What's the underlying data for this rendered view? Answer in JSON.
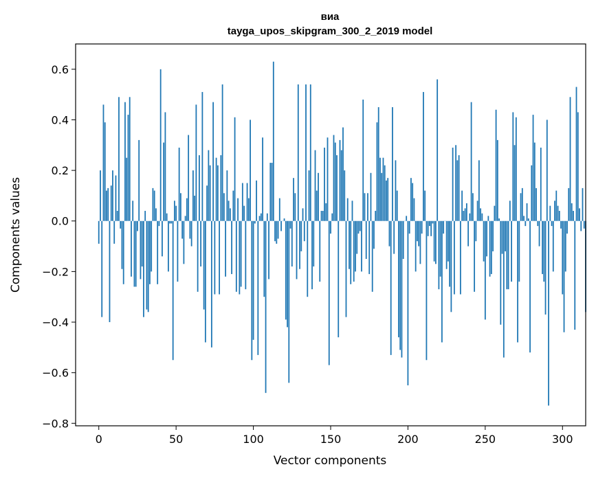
{
  "chart_data": {
    "type": "bar",
    "title": "виа",
    "subtitle": "tayga_upos_skipgram_300_2_2019 model",
    "xlabel": "Vector components",
    "ylabel": "Components values",
    "xlim": [
      -15,
      315
    ],
    "ylim": [
      -0.81,
      0.7
    ],
    "xticks": [
      0,
      50,
      100,
      150,
      200,
      250,
      300
    ],
    "yticks": [
      -0.8,
      -0.6,
      -0.4,
      -0.2,
      0.0,
      0.2,
      0.4,
      0.6
    ],
    "xtick_labels": [
      "0",
      "50",
      "100",
      "150",
      "200",
      "250",
      "300"
    ],
    "ytick_labels": [
      "−0.8",
      "−0.6",
      "−0.4",
      "−0.2",
      "0.0",
      "0.2",
      "0.4",
      "0.6"
    ],
    "bar_color": "#1f77b4",
    "values": [
      -0.09,
      0.2,
      -0.38,
      0.46,
      0.39,
      0.12,
      0.13,
      -0.4,
      0.14,
      0.2,
      -0.09,
      0.18,
      0.04,
      0.49,
      -0.03,
      -0.19,
      -0.25,
      0.47,
      0.25,
      0.42,
      0.49,
      -0.22,
      0.08,
      -0.26,
      -0.26,
      -0.04,
      0.32,
      -0.23,
      -0.18,
      -0.38,
      0.04,
      -0.35,
      -0.36,
      -0.25,
      -0.2,
      0.13,
      0.12,
      0.05,
      -0.25,
      -0.02,
      0.6,
      -0.14,
      0.31,
      0.43,
      0.03,
      -0.2,
      -0.01,
      -0.01,
      -0.55,
      0.08,
      0.06,
      -0.24,
      0.29,
      0.11,
      -0.07,
      -0.17,
      0.02,
      0.09,
      0.34,
      -0.07,
      -0.1,
      0.2,
      0.1,
      0.46,
      -0.28,
      0.26,
      -0.18,
      0.51,
      -0.35,
      -0.48,
      0.14,
      0.28,
      0.22,
      -0.5,
      0.47,
      -0.29,
      0.25,
      0.22,
      -0.29,
      0.26,
      0.54,
      0.11,
      -0.22,
      0.2,
      0.08,
      0.05,
      -0.21,
      0.12,
      0.41,
      -0.28,
      0.09,
      -0.29,
      -0.26,
      0.15,
      0.06,
      -0.27,
      0.15,
      0.09,
      0.4,
      -0.55,
      -0.47,
      -0.01,
      0.16,
      -0.53,
      0.02,
      0.03,
      0.33,
      -0.3,
      -0.68,
      0.03,
      -0.23,
      0.23,
      0.23,
      0.63,
      -0.08,
      -0.09,
      -0.07,
      0.09,
      -0.04,
      0.0,
      0.01,
      -0.39,
      -0.42,
      -0.64,
      -0.03,
      -0.18,
      0.17,
      0.11,
      -0.23,
      0.54,
      -0.19,
      -0.12,
      0.05,
      -0.08,
      0.54,
      -0.3,
      0.2,
      0.54,
      -0.27,
      -0.18,
      0.28,
      0.12,
      0.19,
      -0.24,
      0.04,
      0.04,
      0.29,
      0.07,
      0.33,
      -0.57,
      -0.05,
      0.03,
      0.34,
      0.31,
      0.26,
      -0.46,
      0.32,
      0.28,
      0.37,
      0.2,
      -0.38,
      0.09,
      -0.19,
      -0.25,
      0.08,
      -0.24,
      -0.2,
      -0.13,
      -0.05,
      -0.04,
      -0.2,
      0.48,
      0.11,
      -0.15,
      0.11,
      -0.21,
      0.19,
      -0.28,
      -0.11,
      0.04,
      0.39,
      0.45,
      0.25,
      0.19,
      0.25,
      0.22,
      0.16,
      0.17,
      -0.1,
      -0.53,
      0.45,
      -0.13,
      0.24,
      0.12,
      -0.46,
      -0.51,
      -0.54,
      -0.15,
      0.0,
      0.02,
      -0.65,
      -0.05,
      0.17,
      0.15,
      0.09,
      -0.2,
      -0.08,
      -0.1,
      -0.17,
      -0.05,
      0.51,
      0.12,
      -0.55,
      -0.06,
      -0.02,
      -0.06,
      -0.01,
      -0.16,
      -0.17,
      0.56,
      -0.27,
      -0.22,
      -0.48,
      -0.05,
      0.0,
      -0.19,
      -0.16,
      -0.26,
      -0.36,
      0.29,
      -0.29,
      0.3,
      0.24,
      0.26,
      -0.29,
      0.12,
      0.04,
      0.05,
      0.07,
      -0.1,
      0.03,
      0.47,
      0.11,
      -0.28,
      -0.08,
      0.08,
      0.24,
      0.05,
      0.03,
      -0.16,
      -0.39,
      -0.14,
      0.02,
      -0.22,
      -0.21,
      -0.12,
      0.06,
      0.44,
      0.32,
      0.01,
      -0.41,
      -0.13,
      -0.54,
      -0.12,
      -0.27,
      -0.27,
      0.08,
      -0.24,
      0.43,
      0.3,
      0.41,
      -0.48,
      -0.24,
      0.11,
      0.13,
      0.02,
      -0.02,
      0.07,
      0.01,
      -0.52,
      0.22,
      0.42,
      0.31,
      0.13,
      -0.02,
      -0.1,
      0.29,
      -0.21,
      -0.24,
      -0.37,
      0.4,
      -0.73,
      0.06,
      -0.02,
      -0.2,
      0.08,
      0.12,
      0.06,
      0.04,
      -0.03,
      -0.29,
      -0.44,
      -0.2,
      -0.05,
      0.13,
      0.49,
      0.07,
      0.04,
      -0.43,
      0.53,
      0.43,
      0.05,
      -0.04,
      0.13,
      -0.03,
      -0.36
    ]
  }
}
